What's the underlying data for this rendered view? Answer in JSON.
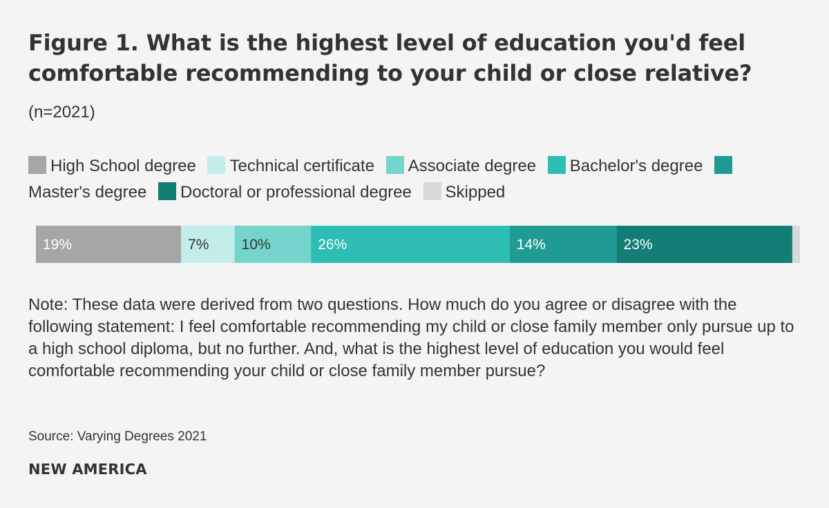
{
  "title": "Figure 1. What is the highest level of education you'd feel comfortable recommending to your child or close relative?",
  "subtitle": "(n=2021)",
  "note": "Note: These data were derived from two questions. How much do you agree or disagree with the following statement: I feel comfortable recommending my child or close family member only pursue up to a high school diploma, but no further. And, what is the highest level of education you would feel comfortable recommending your child or close family member pursue?",
  "source": "Source: Varying Degrees 2021",
  "brand": "NEW AMERICA",
  "legend": [
    {
      "label": "High School degree",
      "color": "#a6a6a6"
    },
    {
      "label": "Technical certificate",
      "color": "#c2ede9"
    },
    {
      "label": "Associate degree",
      "color": "#75d5cd"
    },
    {
      "label": "Bachelor's degree",
      "color": "#2ebdb2"
    },
    {
      "label": "Master's degree",
      "color": "#209b93"
    },
    {
      "label": "Doctoral or professional degree",
      "color": "#127e75"
    },
    {
      "label": "Skipped",
      "color": "#d9d9d9"
    }
  ],
  "chart_data": {
    "type": "bar",
    "orientation": "horizontal",
    "stacked": true,
    "unit": "%",
    "categories": [
      ""
    ],
    "series": [
      {
        "name": "High School degree",
        "values": [
          19
        ],
        "label": "19%",
        "color": "#a6a6a6",
        "label_color": "#ffffff"
      },
      {
        "name": "Technical certificate",
        "values": [
          7
        ],
        "label": "7%",
        "color": "#c2ede9",
        "label_color": "#333333"
      },
      {
        "name": "Associate degree",
        "values": [
          10
        ],
        "label": "10%",
        "color": "#75d5cd",
        "label_color": "#333333"
      },
      {
        "name": "Bachelor's degree",
        "values": [
          26
        ],
        "label": "26%",
        "color": "#2ebdb2",
        "label_color": "#ffffff"
      },
      {
        "name": "Master's degree",
        "values": [
          14
        ],
        "label": "14%",
        "color": "#209b93",
        "label_color": "#ffffff"
      },
      {
        "name": "Doctoral or professional degree",
        "values": [
          23
        ],
        "label": "23%",
        "color": "#127e75",
        "label_color": "#ffffff"
      },
      {
        "name": "Skipped",
        "values": [
          1
        ],
        "label": "",
        "color": "#d9d9d9",
        "label_color": "#333333"
      }
    ],
    "xlim": [
      0,
      100
    ]
  }
}
